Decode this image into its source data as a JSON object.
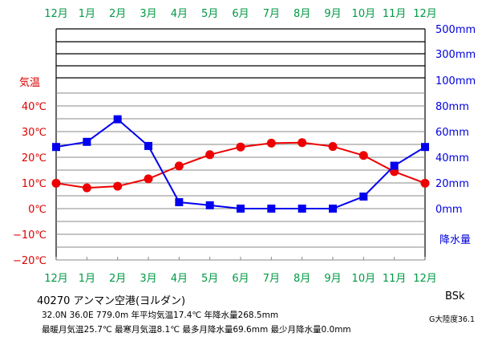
{
  "station": {
    "id_name": "40270  アンマン空港(ヨルダン)",
    "stats_line1": "32.0N  36.0E  779.0m  年平均気温17.4℃  年降水量268.5mm",
    "stats_line2": "最暖月気温25.7℃ 最寒月気温8.1℃ 最多月降水量69.6mm 最少月降水量0.0mm",
    "koppen": "BSk",
    "continentality": "G大陸度36.1"
  },
  "colors": {
    "temperature": "#ee0000",
    "precipitation": "#0000ee",
    "month_label": "#009944",
    "temp_axis": "#dd0000",
    "prec_axis": "#0000dd",
    "grid": "#888888"
  },
  "chart_data": {
    "type": "line",
    "title": "",
    "categories": [
      "12月",
      "1月",
      "2月",
      "3月",
      "4月",
      "5月",
      "6月",
      "7月",
      "8月",
      "9月",
      "10月",
      "11月",
      "12月"
    ],
    "temp_axis_title": "気温",
    "prec_axis_title": "降水量",
    "temp_ticks": [
      "40℃",
      "30℃",
      "20℃",
      "10℃",
      "0℃",
      "−10℃",
      "−20℃"
    ],
    "temp_tick_values": [
      40,
      30,
      20,
      10,
      0,
      -10,
      -20
    ],
    "prec_ticks": [
      "500mm",
      "300mm",
      "100mm",
      "80mm",
      "60mm",
      "40mm",
      "20mm",
      "0mm"
    ],
    "prec_tick_values": [
      500,
      300,
      100,
      80,
      60,
      40,
      20,
      0
    ],
    "temp_ylim": [
      -20,
      60
    ],
    "grid": true,
    "series": [
      {
        "name": "気温",
        "axis": "temperature",
        "marker": "circle",
        "values": [
          9.9,
          8.1,
          8.7,
          11.6,
          16.6,
          21.0,
          24.0,
          25.5,
          25.7,
          24.2,
          20.7,
          14.4,
          9.9
        ]
      },
      {
        "name": "降水量",
        "axis": "precipitation",
        "marker": "square",
        "values": [
          48.0,
          52.0,
          69.6,
          48.8,
          5.0,
          2.6,
          0.0,
          0.0,
          0.0,
          0.0,
          9.4,
          33.4,
          48.0
        ]
      }
    ]
  }
}
